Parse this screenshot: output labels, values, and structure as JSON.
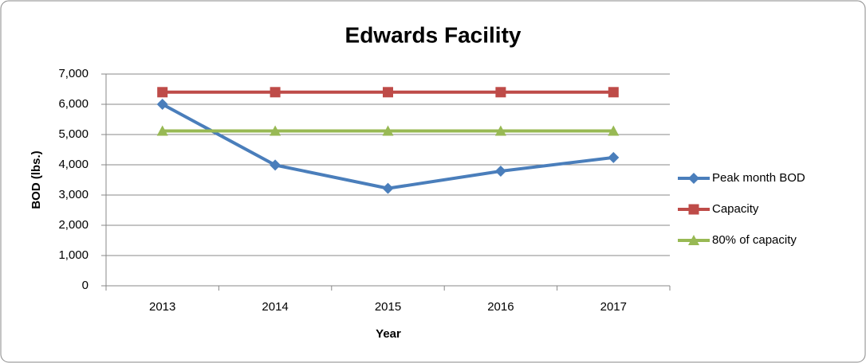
{
  "chart_data": {
    "type": "line",
    "title": "Edwards Facility",
    "x_label": "Year",
    "y_label": "BOD (lbs.)",
    "categories": [
      "2013",
      "2014",
      "2015",
      "2016",
      "2017"
    ],
    "series": [
      {
        "name": "Peak month BOD",
        "color": "#4a7ebb",
        "marker": "diamond",
        "values": [
          6000,
          3990,
          3220,
          3790,
          4240
        ]
      },
      {
        "name": "Capacity",
        "color": "#be4b48",
        "marker": "square",
        "values": [
          6400,
          6400,
          6400,
          6400,
          6400
        ]
      },
      {
        "name": "80% of capacity",
        "color": "#98b954",
        "marker": "triangle",
        "values": [
          5120,
          5120,
          5120,
          5120,
          5120
        ]
      }
    ],
    "ylim": [
      0,
      7000
    ],
    "yticks": [
      0,
      {
        "value": 1000,
        "label": "1,000"
      },
      {
        "value": 2000,
        "label": "2,000"
      },
      {
        "value": 3000,
        "label": "3,000"
      },
      {
        "value": 4000,
        "label": "4,000"
      },
      {
        "value": 5000,
        "label": "5,000"
      },
      {
        "value": 6000,
        "label": "6,000"
      },
      {
        "value": 7000,
        "label": "7,000"
      }
    ],
    "grid": true,
    "legend": "right"
  }
}
